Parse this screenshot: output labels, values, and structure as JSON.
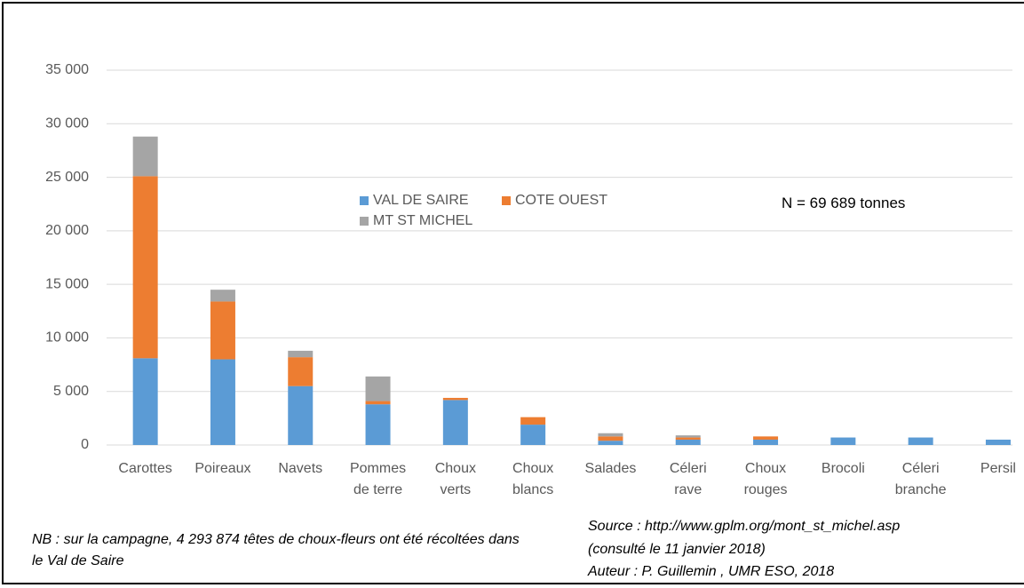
{
  "chart_data": {
    "type": "stacked_bar",
    "categories": [
      "Carottes",
      "Poireaux",
      "Navets",
      "Pommes de terre",
      "Choux verts",
      "Choux blancs",
      "Salades",
      "Céleri rave",
      "Choux rouges",
      "Brocoli",
      "Céleri branche",
      "Persil"
    ],
    "series": [
      {
        "name": "VAL DE SAIRE",
        "color": "#5b9bd5",
        "values": [
          8100,
          8000,
          5500,
          3800,
          4200,
          1900,
          400,
          500,
          500,
          700,
          700,
          500
        ]
      },
      {
        "name": "COTE OUEST",
        "color": "#ed7d31",
        "values": [
          17000,
          5400,
          2700,
          300,
          200,
          700,
          400,
          200,
          300,
          0,
          0,
          0
        ]
      },
      {
        "name": "MT ST MICHEL",
        "color": "#a5a5a5",
        "values": [
          3700,
          1100,
          600,
          2300,
          0,
          0,
          300,
          200,
          0,
          0,
          0,
          0
        ]
      }
    ],
    "ylim": [
      0,
      35000
    ],
    "yticks": [
      0,
      {
        "value": 5000,
        "label": "5 000"
      },
      {
        "value": 10000,
        "label": "10 000"
      },
      {
        "value": 15000,
        "label": "15 000"
      },
      {
        "value": 20000,
        "label": "20 000"
      },
      {
        "value": 25000,
        "label": "25 000"
      },
      {
        "value": 30000,
        "label": "30 000"
      },
      {
        "value": 35000,
        "label": "35 000"
      }
    ],
    "grid": true,
    "annotation": "N = 69 689 tonnes",
    "note": "NB : sur la campagne, 4 293 874 têtes de choux-fleurs ont été récoltées dans le Val de  Saire",
    "source": "Source : http://www.gplm.org/mont_st_michel.asp",
    "consulted": "(consulté le 11 janvier 2018)",
    "author": "Auteur : P. Guillemin , UMR ESO, 2018"
  }
}
